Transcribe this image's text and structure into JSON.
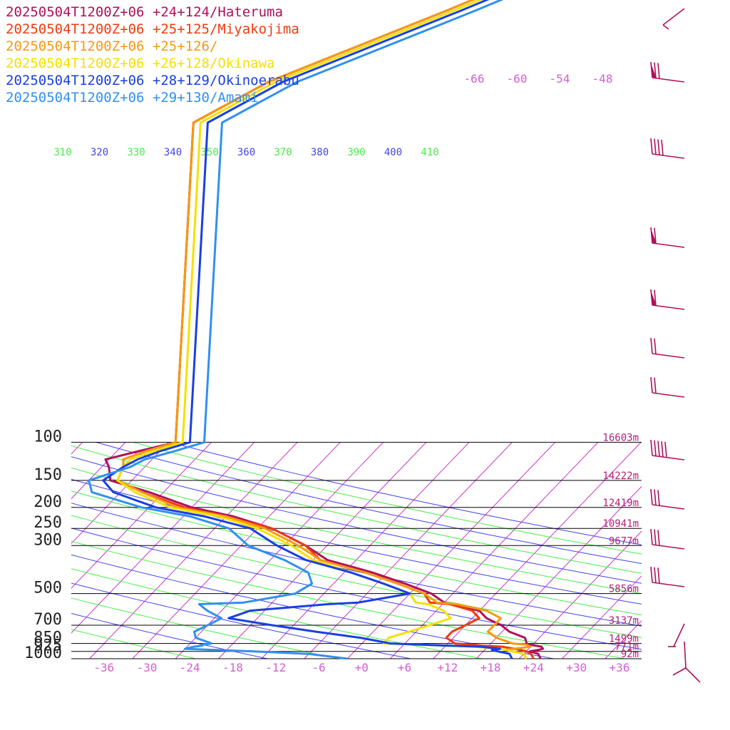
{
  "chart_data": {
    "type": "line",
    "x_label": "",
    "y_label": "",
    "pressure_levels": [
      {
        "p": 100,
        "label": "100",
        "height": "16603m"
      },
      {
        "p": 150,
        "label": "150",
        "height": "14222m"
      },
      {
        "p": 200,
        "label": "200",
        "height": "12419m"
      },
      {
        "p": 250,
        "label": "250",
        "height": "10941m"
      },
      {
        "p": 300,
        "label": "300",
        "height": "9677m"
      },
      {
        "p": 500,
        "label": "500",
        "height": "5856m"
      },
      {
        "p": 700,
        "label": "700",
        "height": "3137m"
      },
      {
        "p": 850,
        "label": "850",
        "height": "1499m"
      },
      {
        "p": 925,
        "label": "925",
        "height": "771m"
      },
      {
        "p": 1000,
        "label": "1000",
        "height": "92m"
      }
    ],
    "temperature_ticks": [
      "-36",
      "-30",
      "-24",
      "-18",
      "-12",
      "-6",
      "+0",
      "+6",
      "+12",
      "+18",
      "+24",
      "+30",
      "+36"
    ],
    "top_temperature_labels": [
      "-66",
      "-60",
      "-54",
      "-48"
    ],
    "theta_labels": [
      "310",
      "320",
      "330",
      "340",
      "350",
      "360",
      "370",
      "380",
      "390",
      "400",
      "410"
    ],
    "colors": {
      "isotherm": "#cc33cc",
      "theta_a": "#4444ee",
      "theta_b": "#44ee44",
      "barb": "#b0105a"
    },
    "series": [
      {
        "name": "20250504T1200Z+06 +24+124/Hateruma",
        "color": "#b0105a",
        "x": [
          -55,
          -59,
          -62.5,
          -61,
          -59,
          -52,
          -44,
          -37,
          -30,
          -23,
          -18,
          -10,
          -4,
          1,
          4,
          5,
          10,
          12,
          15,
          17,
          20,
          21,
          21.5,
          22.5,
          23.5,
          24,
          23.5,
          22.5,
          24,
          25
        ],
        "y": [
          100,
          110,
          120,
          130,
          150,
          170,
          200,
          220,
          250,
          300,
          350,
          400,
          450,
          500,
          550,
          560,
          600,
          650,
          700,
          750,
          800,
          850,
          860,
          870,
          880,
          900,
          910,
          925,
          950,
          1000
        ]
      },
      {
        "name": "20250504T1200Z+06 +25+125/Miyakojima",
        "color": "#f03a10",
        "x": [
          -55,
          -58,
          -60,
          -59,
          -58,
          -53,
          -45,
          -38,
          -30,
          -23,
          -19,
          -11,
          -5,
          0,
          2,
          5,
          9,
          11,
          10,
          9,
          9,
          11,
          13,
          15,
          18,
          20,
          21,
          22,
          23,
          24
        ],
        "y": [
          100,
          110,
          120,
          130,
          150,
          170,
          200,
          220,
          250,
          300,
          350,
          400,
          450,
          500,
          550,
          560,
          600,
          650,
          700,
          750,
          800,
          850,
          860,
          870,
          880,
          900,
          910,
          925,
          950,
          1000
        ]
      },
      {
        "name": "20250504T1200Z+06 +25+126/",
        "color": "#f59a10",
        "x": [
          -55,
          -58,
          -60,
          -59,
          -58,
          -53,
          -46,
          -38,
          -31,
          -24,
          -19,
          -11,
          -5,
          0,
          3,
          6,
          11,
          14,
          14,
          14,
          16,
          19,
          21,
          21.5,
          22,
          20,
          19,
          20,
          22,
          23
        ],
        "y": [
          100,
          110,
          120,
          130,
          150,
          170,
          200,
          220,
          250,
          300,
          350,
          400,
          450,
          500,
          550,
          560,
          600,
          650,
          700,
          750,
          800,
          850,
          860,
          870,
          880,
          900,
          910,
          925,
          950,
          1000
        ]
      },
      {
        "name": "20250504T1200Z+06 +26+128/Okinawa",
        "color": "#f5e000",
        "x": [
          -54,
          -57,
          -59,
          -59,
          -58,
          -54,
          -47,
          -39,
          -32,
          -25,
          -20,
          -13,
          -7,
          -2,
          0,
          2,
          5,
          7,
          5,
          3,
          1,
          1,
          6,
          10,
          14,
          18,
          19,
          20,
          22,
          23
        ],
        "y": [
          100,
          110,
          120,
          130,
          150,
          170,
          200,
          220,
          250,
          300,
          350,
          400,
          450,
          500,
          550,
          560,
          600,
          650,
          700,
          750,
          800,
          850,
          860,
          870,
          880,
          900,
          910,
          925,
          950,
          1000
        ]
      },
      {
        "name": "20250504T1200Z+06 +28+129/Okinoerabu",
        "color": "#1a40e0",
        "x": [
          -53,
          -56,
          -58,
          -59,
          -60,
          -57,
          -49,
          -41,
          -33,
          -27,
          -21,
          -13,
          -7,
          -2,
          -8,
          -12,
          -22,
          -24,
          -17,
          -10,
          -3,
          2,
          6,
          10,
          15,
          18,
          17,
          18,
          20,
          21
        ],
        "y": [
          100,
          110,
          120,
          130,
          150,
          170,
          200,
          220,
          250,
          300,
          350,
          400,
          450,
          500,
          550,
          560,
          600,
          650,
          700,
          750,
          800,
          850,
          860,
          870,
          880,
          900,
          910,
          925,
          950,
          1000
        ]
      },
      {
        "name": "20250504T1200Z+06 +29+130/Amami",
        "color": "#3090f0",
        "x": [
          -51,
          -54,
          -57,
          -58,
          -62,
          -60,
          -51,
          -43,
          -36,
          -31,
          -24,
          -19,
          -17,
          -18,
          -24,
          -30,
          -28,
          -25,
          -26,
          -27,
          -26,
          -23,
          -24,
          -24,
          -25,
          -26,
          -22,
          -16,
          -8,
          -2
        ],
        "y": [
          100,
          110,
          120,
          130,
          150,
          170,
          200,
          220,
          250,
          300,
          350,
          400,
          450,
          500,
          550,
          560,
          600,
          650,
          700,
          750,
          800,
          850,
          860,
          870,
          880,
          900,
          910,
          925,
          950,
          1000
        ]
      }
    ]
  }
}
